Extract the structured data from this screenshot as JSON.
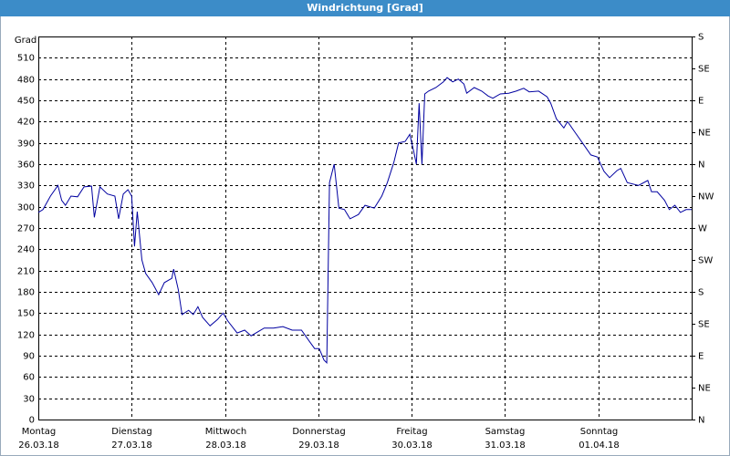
{
  "window_title": "Windrichtung [Grad]",
  "chart_data": {
    "type": "line",
    "ylabel": "Grad",
    "x": [
      0,
      0.05,
      0.13,
      0.21,
      0.25,
      0.29,
      0.35,
      0.42,
      0.49,
      0.57,
      0.6,
      0.66,
      0.74,
      0.82,
      0.86,
      0.91,
      0.96,
      1.0,
      1.03,
      1.06,
      1.11,
      1.15,
      1.22,
      1.29,
      1.35,
      1.43,
      1.45,
      1.5,
      1.54,
      1.61,
      1.66,
      1.71,
      1.76,
      1.84,
      1.92,
      1.98,
      2.03,
      2.13,
      2.21,
      2.28,
      2.42,
      2.52,
      2.62,
      2.72,
      2.82,
      2.91,
      2.96,
      3.01,
      3.06,
      3.09,
      3.12,
      3.17,
      3.22,
      3.28,
      3.34,
      3.43,
      3.5,
      3.6,
      3.68,
      3.74,
      3.81,
      3.86,
      3.93,
      3.98,
      4.02,
      4.05,
      4.08,
      4.11,
      4.14,
      4.18,
      4.26,
      4.34,
      4.38,
      4.44,
      4.5,
      4.56,
      4.59,
      4.67,
      4.75,
      4.82,
      4.87,
      4.95,
      5.04,
      5.12,
      5.2,
      5.26,
      5.36,
      5.45,
      5.49,
      5.55,
      5.63,
      5.67,
      5.75,
      5.83,
      5.92,
      5.99,
      6.06,
      6.12,
      6.2,
      6.24,
      6.31,
      6.43,
      6.53,
      6.57,
      6.63,
      6.71,
      6.76,
      6.82,
      6.88,
      6.94,
      7.0
    ],
    "series": [
      {
        "name": "Windrichtung",
        "color": "#0000a0",
        "values": [
          292,
          296,
          315,
          330,
          309,
          302,
          315,
          314,
          328,
          329,
          285,
          328,
          318,
          315,
          283,
          318,
          324,
          315,
          244,
          293,
          225,
          206,
          193,
          176,
          193,
          199,
          212,
          183,
          148,
          154,
          148,
          159,
          144,
          132,
          141,
          150,
          139,
          122,
          126,
          118,
          129,
          129,
          131,
          126,
          126,
          109,
          100,
          100,
          84,
          80,
          334,
          360,
          298,
          296,
          283,
          289,
          302,
          298,
          315,
          334,
          363,
          390,
          392,
          402,
          379,
          360,
          446,
          360,
          459,
          463,
          468,
          476,
          482,
          476,
          480,
          473,
          460,
          468,
          463,
          456,
          453,
          459,
          460,
          463,
          467,
          462,
          463,
          455,
          446,
          424,
          411,
          420,
          405,
          390,
          373,
          370,
          350,
          341,
          351,
          354,
          334,
          330,
          337,
          321,
          321,
          309,
          296,
          302,
          292,
          296,
          296
        ]
      }
    ],
    "xlim": [
      0,
      7
    ],
    "xticks": [
      {
        "value": 0,
        "label": "Montag"
      },
      {
        "value": 1,
        "label": "Dienstag"
      },
      {
        "value": 2,
        "label": "Mittwoch"
      },
      {
        "value": 3,
        "label": "Donnerstag"
      },
      {
        "value": 4,
        "label": "Freitag"
      },
      {
        "value": 5,
        "label": "Samstag"
      },
      {
        "value": 6,
        "label": "Sonntag"
      }
    ],
    "xtick_dates": [
      "26.03.18",
      "27.03.18",
      "28.03.18",
      "29.03.18",
      "30.03.18",
      "31.03.18",
      "01.04.18"
    ],
    "ylim": [
      0,
      540
    ],
    "yticks": [
      0,
      30,
      60,
      90,
      120,
      150,
      180,
      210,
      240,
      270,
      300,
      330,
      360,
      390,
      420,
      450,
      480,
      510
    ],
    "y2lim": [
      0,
      540
    ],
    "y2ticks": [
      {
        "value": 0,
        "label": "N"
      },
      {
        "value": 45,
        "label": "NE"
      },
      {
        "value": 90,
        "label": "E"
      },
      {
        "value": 135,
        "label": "SE"
      },
      {
        "value": 180,
        "label": "S"
      },
      {
        "value": 225,
        "label": "SW"
      },
      {
        "value": 270,
        "label": "W"
      },
      {
        "value": 315,
        "label": "NW"
      },
      {
        "value": 360,
        "label": "N"
      },
      {
        "value": 405,
        "label": "NE"
      },
      {
        "value": 450,
        "label": "E"
      },
      {
        "value": 495,
        "label": "SE"
      },
      {
        "value": 540,
        "label": "S"
      }
    ],
    "grid": true
  }
}
